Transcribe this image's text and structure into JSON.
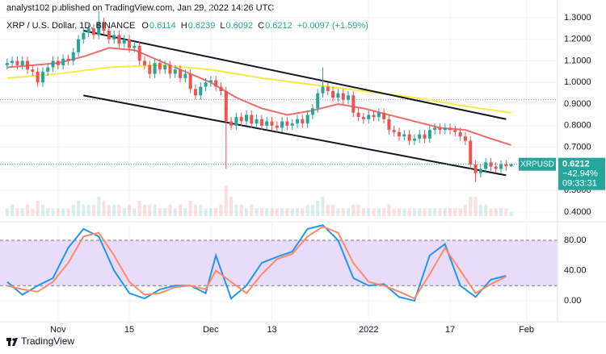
{
  "header": {
    "published": "analyst102 published on TradingView.com, Jan 29, 2022 14:26 UTC",
    "footer": "TradingView"
  },
  "chart_data": [
    {
      "type": "candlestick",
      "title": "XRP / U.S. Dollar, 1D, BINANCE",
      "ohlc": [
        {
          "label": "O",
          "value": "0.6114"
        },
        {
          "label": "H",
          "value": "0.6239"
        },
        {
          "label": "L",
          "value": "0.6092"
        },
        {
          "label": "C",
          "value": "0.6212"
        }
      ],
      "change": "+0.0097 (+1.59%)",
      "up_color": "#26a69a",
      "down_color": "#ef5350",
      "x": [
        -10,
        -9,
        -8,
        -7,
        -6,
        -5,
        -4,
        -3,
        -2,
        -1,
        0,
        1,
        2,
        3,
        4,
        5,
        6,
        7,
        8,
        9,
        10,
        11,
        12,
        13,
        14,
        15,
        16,
        17,
        18,
        19,
        20,
        21,
        22,
        23,
        24,
        25,
        26,
        27,
        28,
        29,
        30,
        31,
        32,
        33,
        34,
        35,
        36,
        37,
        38,
        39,
        40,
        41,
        42,
        43,
        44,
        45,
        46,
        47,
        48,
        49,
        50,
        51,
        52,
        53,
        54,
        55,
        56,
        57,
        58,
        59,
        60,
        61,
        62,
        63,
        64,
        65,
        66,
        67,
        68,
        69,
        70,
        71,
        72,
        73,
        74,
        75,
        76,
        77,
        78,
        79,
        80,
        81,
        82,
        83,
        84,
        85,
        86,
        87,
        88,
        89
      ],
      "candles": [
        [
          1.08,
          1.11,
          1.06,
          1.09
        ],
        [
          1.09,
          1.12,
          1.07,
          1.1
        ],
        [
          1.1,
          1.12,
          1.06,
          1.08
        ],
        [
          1.08,
          1.12,
          1.06,
          1.1
        ],
        [
          1.1,
          1.12,
          1.04,
          1.06
        ],
        [
          1.06,
          1.08,
          1.03,
          1.05
        ],
        [
          1.05,
          1.07,
          0.98,
          1.0
        ],
        [
          1.0,
          1.07,
          0.98,
          1.05
        ],
        [
          1.05,
          1.09,
          1.03,
          1.07
        ],
        [
          1.07,
          1.12,
          1.05,
          1.1
        ],
        [
          1.1,
          1.12,
          1.06,
          1.08
        ],
        [
          1.08,
          1.13,
          1.06,
          1.11
        ],
        [
          1.11,
          1.13,
          1.08,
          1.1
        ],
        [
          1.1,
          1.16,
          1.08,
          1.14
        ],
        [
          1.14,
          1.22,
          1.12,
          1.2
        ],
        [
          1.2,
          1.25,
          1.18,
          1.23
        ],
        [
          1.23,
          1.27,
          1.21,
          1.25
        ],
        [
          1.25,
          1.27,
          1.2,
          1.22
        ],
        [
          1.22,
          1.33,
          1.2,
          1.28
        ],
        [
          1.28,
          1.3,
          1.22,
          1.24
        ],
        [
          1.24,
          1.26,
          1.18,
          1.2
        ],
        [
          1.2,
          1.24,
          1.18,
          1.22
        ],
        [
          1.22,
          1.24,
          1.16,
          1.18
        ],
        [
          1.18,
          1.22,
          1.16,
          1.2
        ],
        [
          1.2,
          1.22,
          1.14,
          1.16
        ],
        [
          1.16,
          1.19,
          1.14,
          1.17
        ],
        [
          1.17,
          1.19,
          1.08,
          1.1
        ],
        [
          1.1,
          1.12,
          1.06,
          1.08
        ],
        [
          1.08,
          1.1,
          1.02,
          1.04
        ],
        [
          1.04,
          1.11,
          1.02,
          1.09
        ],
        [
          1.09,
          1.11,
          1.04,
          1.06
        ],
        [
          1.06,
          1.1,
          1.04,
          1.08
        ],
        [
          1.08,
          1.1,
          1.02,
          1.04
        ],
        [
          1.04,
          1.08,
          1.02,
          1.06
        ],
        [
          1.06,
          1.08,
          1.0,
          1.02
        ],
        [
          1.02,
          1.06,
          1.0,
          1.04
        ],
        [
          1.04,
          1.06,
          0.95,
          0.97
        ],
        [
          0.97,
          0.99,
          0.92,
          0.94
        ],
        [
          0.94,
          1.0,
          0.92,
          0.98
        ],
        [
          0.98,
          1.02,
          0.96,
          1.0
        ],
        [
          1.0,
          1.03,
          0.98,
          1.01
        ],
        [
          1.01,
          1.03,
          0.96,
          0.98
        ],
        [
          0.98,
          1.0,
          0.94,
          0.96
        ],
        [
          0.96,
          0.98,
          0.6,
          0.82
        ],
        [
          0.82,
          0.84,
          0.78,
          0.8
        ],
        [
          0.8,
          0.86,
          0.78,
          0.84
        ],
        [
          0.84,
          0.86,
          0.8,
          0.82
        ],
        [
          0.82,
          0.87,
          0.8,
          0.85
        ],
        [
          0.85,
          0.87,
          0.79,
          0.81
        ],
        [
          0.81,
          0.85,
          0.79,
          0.83
        ],
        [
          0.83,
          0.85,
          0.78,
          0.8
        ],
        [
          0.8,
          0.84,
          0.78,
          0.82
        ],
        [
          0.82,
          0.84,
          0.78,
          0.8
        ],
        [
          0.8,
          0.82,
          0.77,
          0.79
        ],
        [
          0.79,
          0.84,
          0.77,
          0.82
        ],
        [
          0.82,
          0.84,
          0.78,
          0.8
        ],
        [
          0.8,
          0.83,
          0.78,
          0.81
        ],
        [
          0.81,
          0.85,
          0.79,
          0.83
        ],
        [
          0.83,
          0.85,
          0.79,
          0.81
        ],
        [
          0.81,
          0.87,
          0.79,
          0.85
        ],
        [
          0.85,
          0.9,
          0.83,
          0.88
        ],
        [
          0.88,
          0.97,
          0.86,
          0.95
        ],
        [
          0.95,
          1.07,
          0.93,
          0.98
        ],
        [
          0.98,
          1.0,
          0.94,
          0.96
        ],
        [
          0.96,
          0.98,
          0.91,
          0.93
        ],
        [
          0.93,
          0.97,
          0.91,
          0.95
        ],
        [
          0.95,
          0.97,
          0.9,
          0.92
        ],
        [
          0.92,
          0.96,
          0.9,
          0.94
        ],
        [
          0.94,
          0.96,
          0.84,
          0.86
        ],
        [
          0.86,
          0.88,
          0.82,
          0.84
        ],
        [
          0.84,
          0.86,
          0.81,
          0.83
        ],
        [
          0.83,
          0.87,
          0.81,
          0.85
        ],
        [
          0.85,
          0.87,
          0.82,
          0.84
        ],
        [
          0.84,
          0.88,
          0.82,
          0.86
        ],
        [
          0.86,
          0.88,
          0.81,
          0.83
        ],
        [
          0.83,
          0.85,
          0.76,
          0.78
        ],
        [
          0.78,
          0.8,
          0.75,
          0.77
        ],
        [
          0.77,
          0.79,
          0.73,
          0.75
        ],
        [
          0.75,
          0.78,
          0.73,
          0.76
        ],
        [
          0.76,
          0.78,
          0.71,
          0.73
        ],
        [
          0.73,
          0.76,
          0.71,
          0.74
        ],
        [
          0.74,
          0.78,
          0.72,
          0.76
        ],
        [
          0.76,
          0.78,
          0.72,
          0.74
        ],
        [
          0.74,
          0.8,
          0.72,
          0.78
        ],
        [
          0.78,
          0.81,
          0.76,
          0.79
        ],
        [
          0.79,
          0.81,
          0.76,
          0.78
        ],
        [
          0.78,
          0.81,
          0.76,
          0.79
        ],
        [
          0.79,
          0.81,
          0.76,
          0.78
        ],
        [
          0.78,
          0.8,
          0.75,
          0.77
        ],
        [
          0.77,
          0.79,
          0.73,
          0.75
        ],
        [
          0.75,
          0.77,
          0.71,
          0.73
        ],
        [
          0.73,
          0.75,
          0.6,
          0.62
        ],
        [
          0.62,
          0.64,
          0.54,
          0.58
        ],
        [
          0.58,
          0.62,
          0.56,
          0.6
        ],
        [
          0.6,
          0.65,
          0.58,
          0.63
        ],
        [
          0.63,
          0.65,
          0.59,
          0.61
        ],
        [
          0.61,
          0.63,
          0.58,
          0.6
        ],
        [
          0.6,
          0.64,
          0.58,
          0.62
        ],
        [
          0.62,
          0.64,
          0.59,
          0.6114
        ],
        [
          0.6114,
          0.6239,
          0.6092,
          0.6212
        ]
      ],
      "volume": [
        2,
        3,
        2,
        2,
        3,
        2,
        4,
        3,
        2,
        2,
        2,
        2,
        2,
        3,
        4,
        3,
        3,
        3,
        5,
        4,
        3,
        3,
        3,
        2,
        3,
        2,
        4,
        3,
        3,
        3,
        2,
        2,
        3,
        2,
        3,
        2,
        4,
        3,
        3,
        2,
        2,
        2,
        3,
        8,
        5,
        3,
        3,
        2,
        3,
        2,
        2,
        2,
        2,
        2,
        2,
        2,
        2,
        2,
        2,
        3,
        3,
        4,
        5,
        3,
        3,
        2,
        2,
        2,
        3,
        3,
        2,
        2,
        2,
        2,
        2,
        3,
        2,
        2,
        2,
        2,
        2,
        2,
        2,
        2,
        2,
        2,
        2,
        2,
        2,
        2,
        3,
        5,
        5,
        3,
        3,
        2,
        2,
        2,
        2,
        1
      ],
      "overlays": [
        {
          "color": "#f06b6b",
          "x": [
            -10,
            -5,
            0,
            5,
            10,
            15,
            20,
            25,
            30,
            35,
            40,
            45,
            50,
            55,
            60,
            65,
            70,
            75,
            80,
            85,
            89
          ],
          "values": [
            1.07,
            1.08,
            1.09,
            1.12,
            1.16,
            1.15,
            1.1,
            1.05,
            1.0,
            0.93,
            0.88,
            0.85,
            0.87,
            0.9,
            0.88,
            0.85,
            0.82,
            0.79,
            0.78,
            0.74,
            0.71
          ]
        },
        {
          "color": "#f7e94a",
          "x": [
            -10,
            0,
            10,
            20,
            30,
            40,
            50,
            60,
            70,
            80,
            89
          ],
          "values": [
            1.02,
            1.04,
            1.07,
            1.08,
            1.06,
            1.02,
            0.99,
            0.96,
            0.93,
            0.89,
            0.86
          ]
        },
        {
          "color": "#131722",
          "x": [
            5,
            88
          ],
          "values": [
            1.24,
            0.83
          ]
        },
        {
          "color": "#131722",
          "x": [
            5,
            88
          ],
          "values": [
            0.94,
            0.57
          ]
        }
      ],
      "reference_level": 0.92,
      "xlim": [
        -11.4,
        98.1
      ],
      "ylim": [
        0.366,
        1.382
      ],
      "yticks": [
        {
          "value": 1.3,
          "label": "1.3000"
        },
        {
          "value": 1.2,
          "label": "1.2000"
        },
        {
          "value": 1.1,
          "label": "1.1000"
        },
        {
          "value": 1.0,
          "label": "1.0000"
        },
        {
          "value": 0.9,
          "label": "0.9000"
        },
        {
          "value": 0.8,
          "label": "0.8000"
        },
        {
          "value": 0.7,
          "label": "0.7000"
        },
        {
          "value": 0.6,
          "label": "0.6000"
        },
        {
          "value": 0.5,
          "label": "0.5000"
        },
        {
          "value": 0.4,
          "label": "0.4000"
        }
      ],
      "xticks": [
        {
          "value": 0,
          "label": "Nov"
        },
        {
          "value": 14,
          "label": "15"
        },
        {
          "value": 30,
          "label": "Dec"
        },
        {
          "value": 42,
          "label": "13"
        },
        {
          "value": 61,
          "label": "2022"
        },
        {
          "value": 77,
          "label": "17"
        },
        {
          "value": 92,
          "label": "Feb"
        }
      ],
      "price_label": {
        "symbol": "XRPUSD",
        "price": "0.6212",
        "change": "−42.94%",
        "countdown": "09:33:31",
        "color": "#26a69a"
      }
    },
    {
      "type": "line",
      "x": [
        -10,
        -7,
        -4,
        -1,
        2,
        5,
        8,
        11,
        14,
        17,
        20,
        23,
        26,
        29,
        31,
        34,
        37,
        40,
        43,
        46,
        49,
        52,
        55,
        58,
        61,
        64,
        67,
        70,
        73,
        76,
        79,
        82,
        85,
        88
      ],
      "series": [
        {
          "color": "#2196f3",
          "values": [
            25,
            8,
            20,
            30,
            70,
            95,
            85,
            40,
            10,
            3,
            15,
            20,
            20,
            10,
            60,
            3,
            20,
            50,
            58,
            65,
            95,
            100,
            80,
            30,
            20,
            22,
            5,
            0,
            60,
            75,
            20,
            5,
            28,
            33
          ]
        },
        {
          "color": "#ff8a65",
          "values": [
            20,
            15,
            12,
            25,
            50,
            85,
            90,
            60,
            25,
            8,
            10,
            18,
            20,
            15,
            40,
            25,
            10,
            35,
            55,
            62,
            85,
            98,
            90,
            50,
            25,
            20,
            12,
            3,
            35,
            70,
            40,
            10,
            22,
            32
          ]
        }
      ],
      "band": [
        20,
        80
      ],
      "band_color": "#e9dcfb",
      "ylim": [
        -26.7,
        101.3
      ],
      "yticks": [
        {
          "value": 80,
          "label": "80.00"
        },
        {
          "value": 40,
          "label": "40.00"
        },
        {
          "value": 0,
          "label": "0.00"
        }
      ]
    }
  ]
}
